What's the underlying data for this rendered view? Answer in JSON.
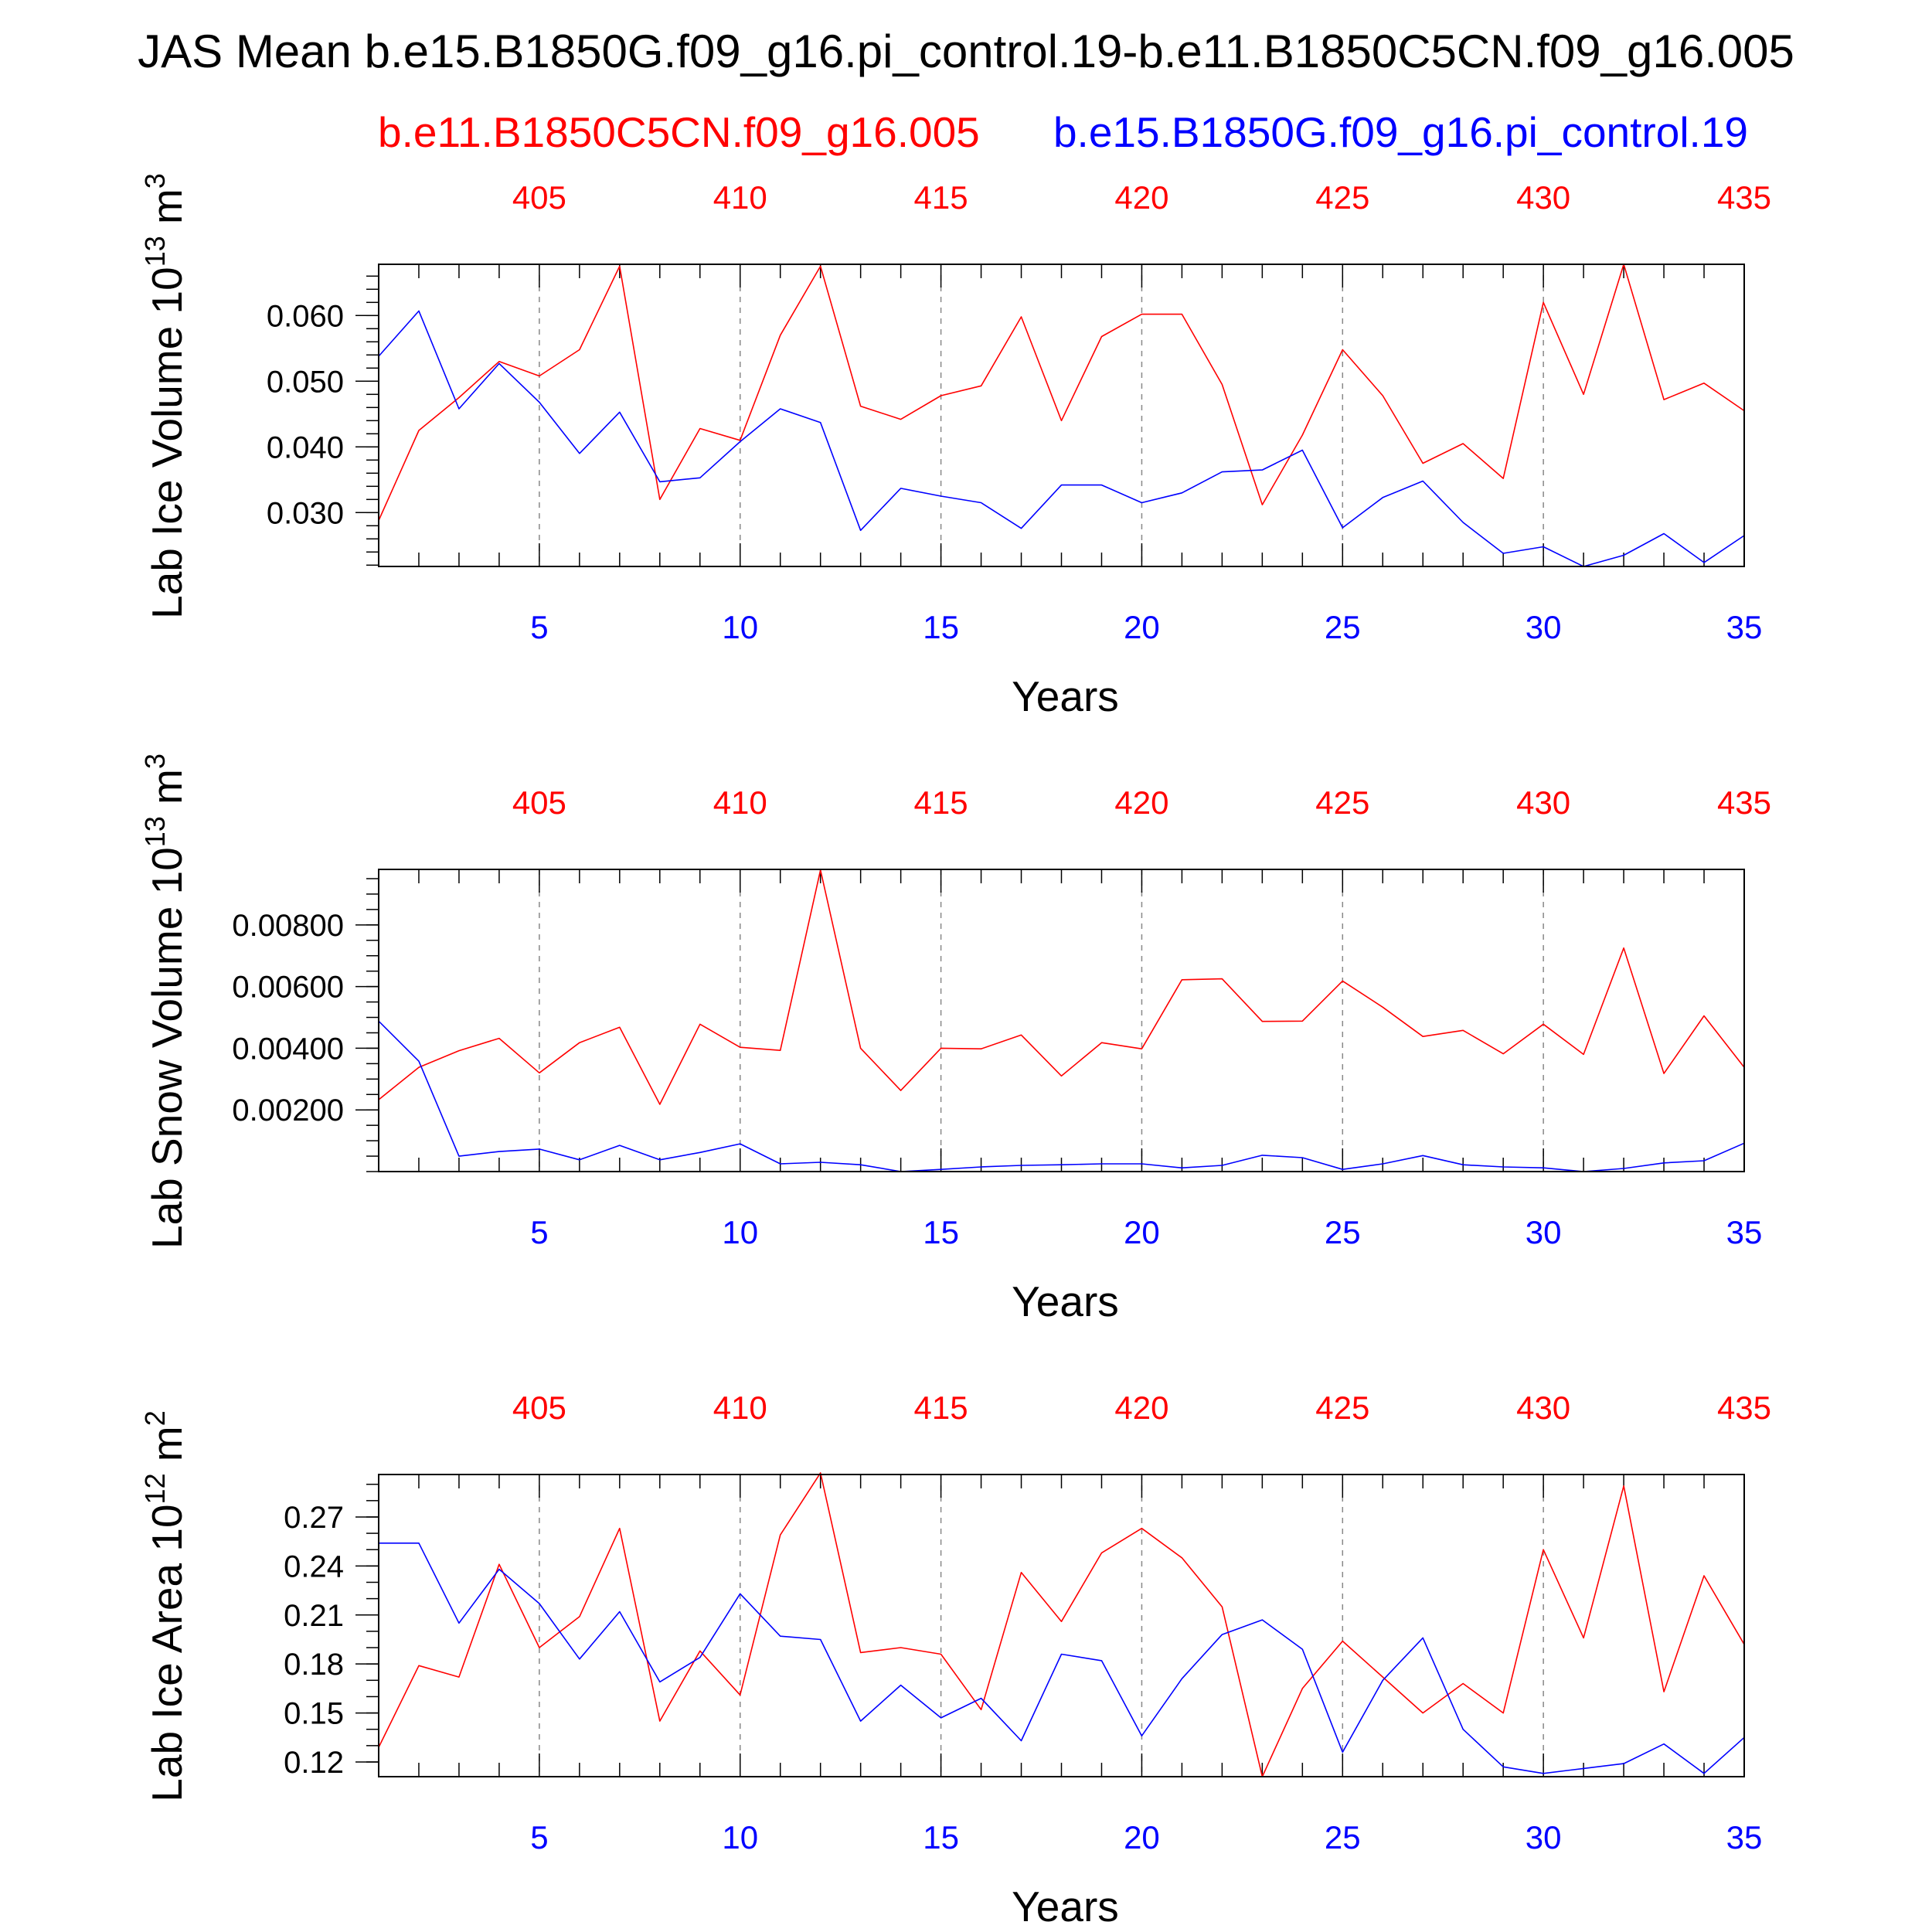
{
  "title": "JAS Mean b.e15.B1850G.f09_g16.pi_control.19-b.e11.B1850C5CN.f09_g16.005",
  "legend": {
    "red_label": "b.e11.B1850C5CN.f09_g16.005",
    "blue_label": "b.e15.B1850G.f09_g16.pi_control.19"
  },
  "colors": {
    "red": "#ff0000",
    "blue": "#0000ff",
    "axis": "#000000",
    "grid": "#888888"
  },
  "chart_data": [
    {
      "type": "line",
      "ylabel": "Lab Ice Volume 10",
      "ylabel_exp": "13",
      "ylabel_unit": " m",
      "ylabel_unit_exp": "3",
      "xlabel": "Years",
      "x": [
        1,
        2,
        3,
        4,
        5,
        6,
        7,
        8,
        9,
        10,
        11,
        12,
        13,
        14,
        15,
        16,
        17,
        18,
        19,
        20,
        21,
        22,
        23,
        24,
        25,
        26,
        27,
        28,
        29,
        30,
        31,
        32,
        33,
        34,
        35
      ],
      "xlim": [
        1,
        35
      ],
      "ylim": [
        0.0218,
        0.0678
      ],
      "yticks": [
        0.03,
        0.04,
        0.05,
        0.06
      ],
      "yticklabels": [
        "0.030",
        "0.040",
        "0.050",
        "0.060"
      ],
      "yminor_step": 0.002,
      "bottom_ticks": [
        5,
        10,
        15,
        20,
        25,
        30,
        35
      ],
      "bottom_ticklabels": [
        "5",
        "10",
        "15",
        "20",
        "25",
        "30",
        "35"
      ],
      "top_ticklabels": [
        "405",
        "410",
        "415",
        "420",
        "425",
        "430",
        "435"
      ],
      "series": [
        {
          "name": "b.e11.B1850C5CN.f09_g16.005",
          "color": "red",
          "values": [
            0.0288,
            0.0425,
            0.0475,
            0.053,
            0.0508,
            0.0548,
            0.0675,
            0.032,
            0.0428,
            0.041,
            0.057,
            0.0675,
            0.0462,
            0.0442,
            0.0478,
            0.0493,
            0.0598,
            0.044,
            0.0568,
            0.0602,
            0.0602,
            0.0495,
            0.0312,
            0.0418,
            0.0548,
            0.0478,
            0.0375,
            0.0405,
            0.0352,
            0.062,
            0.048,
            0.0678,
            0.0472,
            0.0497,
            0.0455
          ]
        },
        {
          "name": "b.e15.B1850G.f09_g16.pi_control.19",
          "color": "blue",
          "values": [
            0.0538,
            0.0607,
            0.0458,
            0.0527,
            0.0468,
            0.039,
            0.0453,
            0.0347,
            0.0353,
            0.0408,
            0.0458,
            0.0437,
            0.0273,
            0.0337,
            0.0325,
            0.0315,
            0.0276,
            0.0342,
            0.0342,
            0.0315,
            0.033,
            0.0362,
            0.0365,
            0.0395,
            0.0277,
            0.0323,
            0.0348,
            0.0285,
            0.0238,
            0.0248,
            0.0218,
            0.0235,
            0.0268,
            0.0224,
            0.0265
          ]
        }
      ]
    },
    {
      "type": "line",
      "ylabel": "Lab Snow Volume 10",
      "ylabel_exp": "13",
      "ylabel_unit": " m",
      "ylabel_unit_exp": "3",
      "xlabel": "Years",
      "x": [
        1,
        2,
        3,
        4,
        5,
        6,
        7,
        8,
        9,
        10,
        11,
        12,
        13,
        14,
        15,
        16,
        17,
        18,
        19,
        20,
        21,
        22,
        23,
        24,
        25,
        26,
        27,
        28,
        29,
        30,
        31,
        32,
        33,
        34,
        35
      ],
      "xlim": [
        1,
        35
      ],
      "ylim": [
        0.0,
        0.0098
      ],
      "yticks": [
        0.002,
        0.004,
        0.006,
        0.008
      ],
      "yticklabels": [
        "0.00200",
        "0.00400",
        "0.00600",
        "0.00800"
      ],
      "yminor_step": 0.0005,
      "bottom_ticks": [
        5,
        10,
        15,
        20,
        25,
        30,
        35
      ],
      "bottom_ticklabels": [
        "5",
        "10",
        "15",
        "20",
        "25",
        "30",
        "35"
      ],
      "top_ticklabels": [
        "405",
        "410",
        "415",
        "420",
        "425",
        "430",
        "435"
      ],
      "series": [
        {
          "name": "b.e11.B1850C5CN.f09_g16.005",
          "color": "red",
          "values": [
            0.00233,
            0.00338,
            0.00392,
            0.00432,
            0.0032,
            0.00418,
            0.00468,
            0.00218,
            0.00478,
            0.00403,
            0.00393,
            0.00978,
            0.004,
            0.00263,
            0.004,
            0.00398,
            0.00443,
            0.0031,
            0.00418,
            0.00398,
            0.00622,
            0.00625,
            0.00487,
            0.00488,
            0.00618,
            0.00533,
            0.00438,
            0.00458,
            0.00382,
            0.00478,
            0.0038,
            0.00725,
            0.00318,
            0.00505,
            0.00338
          ]
        },
        {
          "name": "b.e15.B1850G.f09_g16.pi_control.19",
          "color": "blue",
          "values": [
            0.00488,
            0.00358,
            0.0005,
            0.00065,
            0.00073,
            0.00038,
            0.00085,
            0.00038,
            0.00062,
            0.0009,
            0.00025,
            0.0003,
            0.00022,
            0.0,
            7e-05,
            0.00015,
            0.0002,
            0.00022,
            0.00025,
            0.00025,
            0.00012,
            0.0002,
            0.00053,
            0.00045,
            7e-05,
            0.00025,
            0.00052,
            0.00022,
            0.00015,
            0.00012,
            0.0,
            0.0001,
            0.00028,
            0.00035,
            0.00092
          ]
        }
      ]
    },
    {
      "type": "line",
      "ylabel": "Lab Ice Area 10",
      "ylabel_exp": "12",
      "ylabel_unit": " m",
      "ylabel_unit_exp": "2",
      "xlabel": "Years",
      "x": [
        1,
        2,
        3,
        4,
        5,
        6,
        7,
        8,
        9,
        10,
        11,
        12,
        13,
        14,
        15,
        16,
        17,
        18,
        19,
        20,
        21,
        22,
        23,
        24,
        25,
        26,
        27,
        28,
        29,
        30,
        31,
        32,
        33,
        34,
        35
      ],
      "xlim": [
        1,
        35
      ],
      "ylim": [
        0.111,
        0.296
      ],
      "yticks": [
        0.12,
        0.15,
        0.18,
        0.21,
        0.24,
        0.27
      ],
      "yticklabels": [
        "0.12",
        "0.15",
        "0.18",
        "0.21",
        "0.24",
        "0.27"
      ],
      "yminor_step": 0.01,
      "bottom_ticks": [
        5,
        10,
        15,
        20,
        25,
        30,
        35
      ],
      "bottom_ticklabels": [
        "5",
        "10",
        "15",
        "20",
        "25",
        "30",
        "35"
      ],
      "top_ticklabels": [
        "405",
        "410",
        "415",
        "420",
        "425",
        "430",
        "435"
      ],
      "series": [
        {
          "name": "b.e11.B1850C5CN.f09_g16.005",
          "color": "red",
          "values": [
            0.129,
            0.179,
            0.172,
            0.241,
            0.19,
            0.209,
            0.263,
            0.145,
            0.188,
            0.161,
            0.259,
            0.297,
            0.187,
            0.19,
            0.186,
            0.152,
            0.236,
            0.206,
            0.248,
            0.263,
            0.245,
            0.215,
            0.111,
            0.165,
            0.194,
            0.172,
            0.15,
            0.168,
            0.15,
            0.25,
            0.196,
            0.289,
            0.163,
            0.234,
            0.192
          ]
        },
        {
          "name": "b.e15.B1850G.f09_g16.pi_control.19",
          "color": "blue",
          "values": [
            0.254,
            0.254,
            0.205,
            0.238,
            0.217,
            0.183,
            0.212,
            0.169,
            0.184,
            0.223,
            0.197,
            0.195,
            0.145,
            0.167,
            0.147,
            0.159,
            0.133,
            0.186,
            0.182,
            0.136,
            0.171,
            0.198,
            0.207,
            0.189,
            0.126,
            0.17,
            0.196,
            0.14,
            0.117,
            0.113,
            0.116,
            0.119,
            0.131,
            0.113,
            0.135
          ]
        }
      ]
    }
  ]
}
